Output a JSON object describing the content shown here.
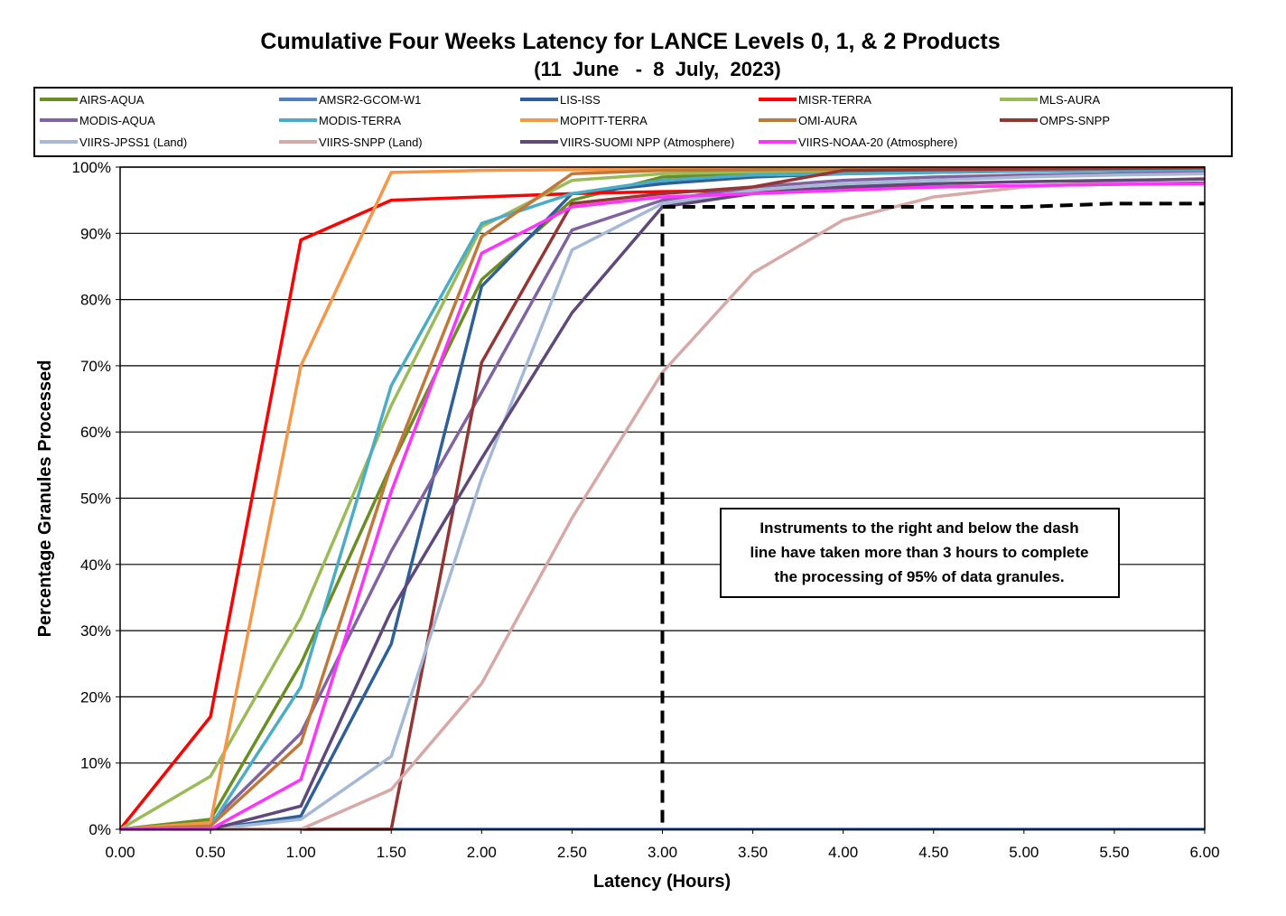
{
  "chart_data": {
    "type": "line",
    "title": "Cumulative Four Weeks Latency  for LANCE Levels 0, 1, & 2 Products",
    "subtitle": "(11  June   -  8  July,  2023)",
    "xlabel": "Latency (Hours)",
    "ylabel": "Percentage Granules Processed",
    "xlim": [
      0,
      6
    ],
    "ylim": [
      0,
      100
    ],
    "x_ticks": [
      "0.00",
      "0.50",
      "1.00",
      "1.50",
      "2.00",
      "2.50",
      "3.00",
      "3.50",
      "4.00",
      "4.50",
      "5.00",
      "5.50",
      "6.00"
    ],
    "y_ticks": [
      "0%",
      "10%",
      "20%",
      "30%",
      "40%",
      "50%",
      "60%",
      "70%",
      "80%",
      "90%",
      "100%"
    ],
    "grid": "horizontal",
    "legend_position": "top",
    "x": [
      0,
      0.5,
      1,
      1.5,
      2,
      2.5,
      3,
      3.5,
      4,
      4.5,
      5,
      5.5,
      6
    ],
    "series": [
      {
        "name": "AIRS-AQUA",
        "color": "#6b8e23",
        "values": [
          0,
          1.5,
          25,
          55,
          83,
          95,
          98.5,
          99,
          99.3,
          99.5,
          99.6,
          99.7,
          99.8
        ]
      },
      {
        "name": "AMSR2-GCOM-W1",
        "color": "#4f81bd",
        "values": [
          0,
          0,
          0,
          0,
          0,
          0,
          0,
          0,
          0,
          0,
          0,
          0,
          0
        ]
      },
      {
        "name": "LIS-ISS",
        "color": "#2f5f98",
        "values": [
          0,
          0,
          2,
          28,
          82,
          96,
          97.5,
          98.5,
          99,
          99.2,
          99.4,
          99.5,
          99.6
        ]
      },
      {
        "name": "MISR-TERRA",
        "color": "#ff0000",
        "values": [
          0,
          17,
          89,
          95,
          95.5,
          96,
          96.3,
          96.5,
          96.8,
          97,
          97.2,
          97.4,
          97.6
        ]
      },
      {
        "name": "MLS-AURA",
        "color": "#9bbb59",
        "values": [
          0,
          8,
          32,
          64,
          91,
          98,
          99,
          99.3,
          99.5,
          99.6,
          99.7,
          99.8,
          99.9
        ]
      },
      {
        "name": "MODIS-AQUA",
        "color": "#8064a2",
        "values": [
          0,
          1,
          14.5,
          42,
          66,
          90.5,
          95,
          97,
          98,
          98.5,
          98.8,
          99,
          99.2
        ]
      },
      {
        "name": "MODIS-TERRA",
        "color": "#4bacc6",
        "values": [
          0,
          0.5,
          21.5,
          67,
          91.5,
          96,
          98,
          98.8,
          99,
          99.2,
          99.4,
          99.5,
          99.6
        ]
      },
      {
        "name": "MOPITT-TERRA",
        "color": "#f79646",
        "values": [
          0,
          1,
          70,
          99.2,
          99.5,
          99.6,
          99.7,
          99.8,
          99.8,
          99.9,
          99.9,
          99.9,
          99.9
        ]
      },
      {
        "name": "OMI-AURA",
        "color": "#c0773a",
        "values": [
          0,
          0.5,
          13,
          55,
          89.5,
          99,
          99.5,
          99.6,
          99.7,
          99.8,
          99.8,
          99.9,
          99.9
        ]
      },
      {
        "name": "OMPS-SNPP",
        "color": "#943634",
        "values": [
          0,
          0,
          0,
          0,
          70.5,
          94.5,
          96,
          97,
          99.5,
          99.6,
          99.7,
          99.8,
          99.9
        ]
      },
      {
        "name": "VIIRS-JPSS1 (Land)",
        "color": "#a5b9d6",
        "values": [
          0,
          0,
          1.5,
          11,
          53,
          87.5,
          94.5,
          96.5,
          97.5,
          98,
          98.5,
          98.8,
          99
        ]
      },
      {
        "name": "VIIRS-SNPP (Land)",
        "color": "#d6a8a6",
        "values": [
          0,
          0,
          0,
          6,
          22,
          47,
          69,
          84,
          92,
          95.5,
          97,
          97.8,
          98.3
        ]
      },
      {
        "name": "VIIRS-SUOMI NPP (Atmosphere)",
        "color": "#5f497a",
        "values": [
          0,
          0,
          3.5,
          33,
          56,
          78,
          94,
          96,
          97,
          97.5,
          97.8,
          98,
          98.2
        ]
      },
      {
        "name": "VIIRS-NOAA-20 (Atmosphere)",
        "color": "#ff33ff",
        "values": [
          0,
          0,
          7.5,
          51,
          87,
          94,
          95.5,
          96,
          96.5,
          97,
          97.2,
          97.4,
          97.5
        ]
      }
    ],
    "threshold_line": {
      "x": [
        3.0,
        3.0,
        3.05,
        3.5,
        4.0,
        4.5,
        5.0,
        5.5,
        6.0
      ],
      "y": [
        1,
        94,
        94,
        94,
        94,
        94,
        94,
        94.5,
        94.5
      ],
      "color": "#000000"
    },
    "annotation": {
      "lines": [
        "Instruments to the right and below the dash",
        "line have taken more than 3 hours to complete",
        "the processing of 95% of data granules."
      ]
    }
  }
}
